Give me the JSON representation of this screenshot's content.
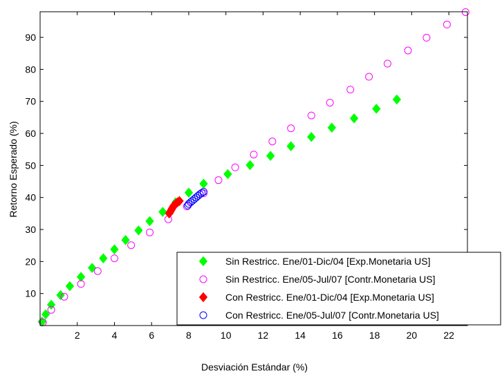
{
  "chart_data": {
    "type": "scatter",
    "xlabel": "Desviación Estándar (%)",
    "ylabel": "Retorno Esperado (%)",
    "xlim": [
      0,
      23
    ],
    "ylim": [
      0,
      98
    ],
    "xticks": [
      2,
      4,
      6,
      8,
      10,
      12,
      14,
      16,
      18,
      20,
      22
    ],
    "yticks": [
      10,
      20,
      30,
      40,
      50,
      60,
      70,
      80,
      90
    ],
    "grid": false,
    "legend_position": "bottom-right",
    "series": [
      {
        "name": "Sin Restricc. Ene/01-Dic/04 [Exp.Monetaria US]",
        "marker": "diamond-filled",
        "color": "#00ff00",
        "points": [
          [
            0.1,
            1.2
          ],
          [
            0.3,
            3.5
          ],
          [
            0.6,
            6.5
          ],
          [
            1.1,
            9.5
          ],
          [
            1.6,
            12.3
          ],
          [
            2.2,
            15.2
          ],
          [
            2.8,
            18.0
          ],
          [
            3.4,
            21.0
          ],
          [
            4.0,
            23.8
          ],
          [
            4.6,
            26.7
          ],
          [
            5.3,
            29.7
          ],
          [
            5.9,
            32.6
          ],
          [
            6.6,
            35.5
          ],
          [
            7.3,
            38.5
          ],
          [
            8.0,
            41.5
          ],
          [
            8.8,
            44.3
          ],
          [
            10.1,
            47.3
          ],
          [
            11.3,
            50.1
          ],
          [
            12.4,
            53.0
          ],
          [
            13.5,
            56.0
          ],
          [
            14.6,
            58.9
          ],
          [
            15.7,
            61.8
          ],
          [
            16.9,
            64.7
          ],
          [
            18.1,
            67.7
          ],
          [
            19.2,
            70.6
          ]
        ]
      },
      {
        "name": "Sin Restricc. Ene/05-Jul/07 [Contr.Monetaria US]",
        "marker": "circle-open",
        "color": "#ff00ff",
        "points": [
          [
            0.15,
            1.0
          ],
          [
            0.6,
            4.9
          ],
          [
            1.3,
            9.0
          ],
          [
            2.2,
            13.0
          ],
          [
            3.1,
            17.0
          ],
          [
            4.0,
            21.0
          ],
          [
            4.9,
            25.1
          ],
          [
            5.9,
            29.1
          ],
          [
            6.9,
            33.2
          ],
          [
            7.9,
            37.2
          ],
          [
            8.8,
            41.3
          ],
          [
            9.6,
            45.4
          ],
          [
            10.5,
            49.4
          ],
          [
            11.5,
            53.4
          ],
          [
            12.5,
            57.5
          ],
          [
            13.5,
            61.6
          ],
          [
            14.6,
            65.6
          ],
          [
            15.6,
            69.6
          ],
          [
            16.7,
            73.7
          ],
          [
            17.7,
            77.7
          ],
          [
            18.7,
            81.8
          ],
          [
            19.8,
            85.9
          ],
          [
            20.8,
            89.9
          ],
          [
            21.9,
            94.0
          ],
          [
            22.9,
            97.9
          ]
        ]
      },
      {
        "name": "Con Restricc. Ene/01-Dic/04 [Exp.Monetaria US]",
        "marker": "diamond-filled",
        "color": "#ff0000",
        "points": [
          [
            6.95,
            35.0
          ],
          [
            7.0,
            35.5
          ],
          [
            7.05,
            36.0
          ],
          [
            7.1,
            36.5
          ],
          [
            7.15,
            37.0
          ],
          [
            7.2,
            37.5
          ],
          [
            7.3,
            38.0
          ],
          [
            7.4,
            38.5
          ],
          [
            7.5,
            38.9
          ]
        ]
      },
      {
        "name": "Con Restricc. Ene/05-Jul/07 [Contr.Monetaria US]",
        "marker": "circle-open",
        "color": "#0000ff",
        "points": [
          [
            7.95,
            37.5
          ],
          [
            8.0,
            38.0
          ],
          [
            8.1,
            38.5
          ],
          [
            8.2,
            39.0
          ],
          [
            8.3,
            39.5
          ],
          [
            8.4,
            40.0
          ],
          [
            8.5,
            40.5
          ],
          [
            8.6,
            41.0
          ],
          [
            8.7,
            41.4
          ],
          [
            8.8,
            41.8
          ]
        ]
      }
    ]
  }
}
